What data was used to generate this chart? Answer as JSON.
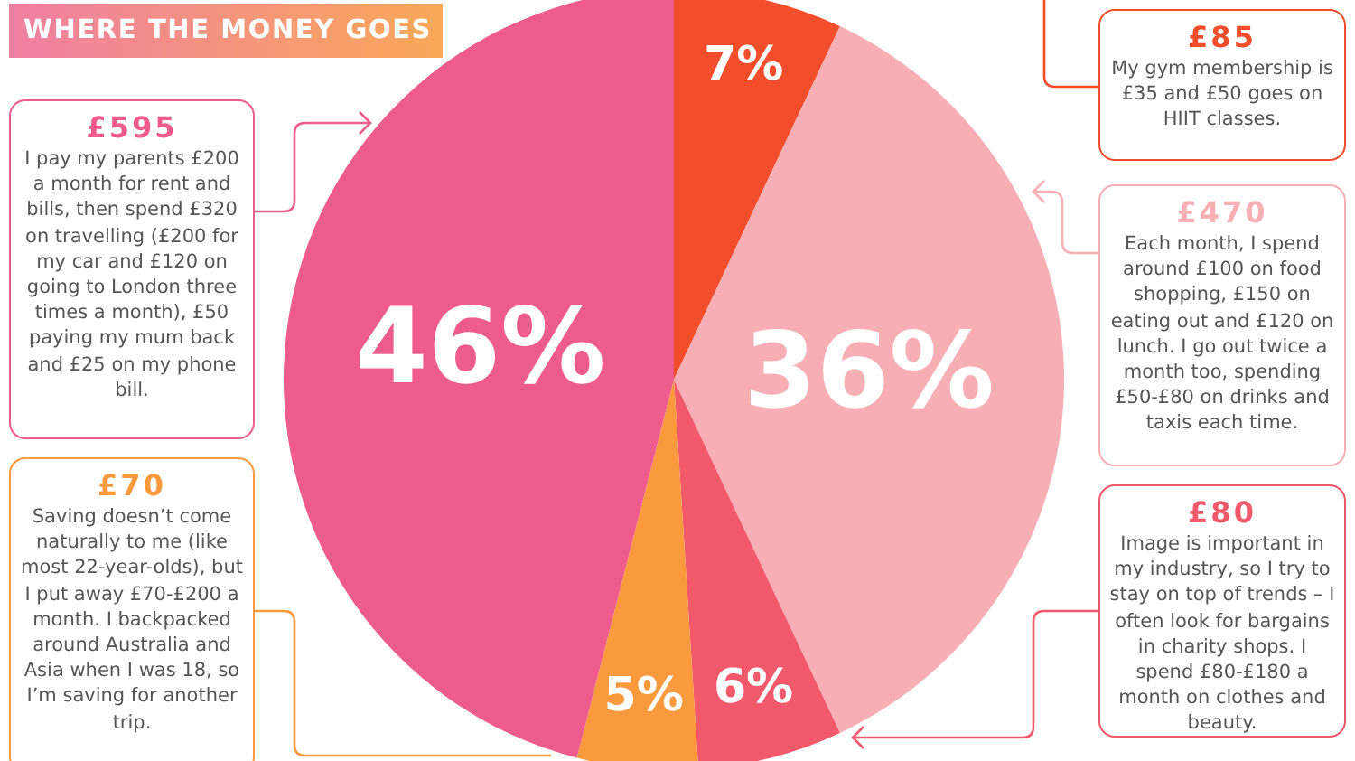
{
  "chart_data": {
    "type": "pie",
    "title": "WHERE THE MONEY GOES",
    "categories": [
      null,
      null,
      null,
      null,
      null
    ],
    "values": [
      7,
      36,
      6,
      5,
      46
    ],
    "colors": [
      "#f24e2b",
      "#f7aeb5",
      "#f25a6b",
      "#fb993d",
      "#ee5b8d"
    ],
    "value_labels": [
      "7%",
      "36%",
      "6%",
      "5%",
      "46%"
    ],
    "legend": false,
    "annotations": [
      "£595\nI pay my parents £200 a month for rent and bills, then spend £320 on travelling (£200 for my car and £120 on going to London three times a month), £50 paying my mum back and £25 on my phone bill.",
      "£70\nSaving doesn’t come naturally to me (like most 22-year-olds), but I put away £70-£200 a month. I backpacked around Australia and Asia when I was 18, so I’m saving for another trip.",
      "£85\nMy gym membership is £35 and £50 goes on HIIT classes.",
      "£470\nEach month, I spend around £100 on food shopping, £150 on eating out and £120 on lunch. I go out twice a month too, spending £50-£80 on drinks and taxis each time.",
      "£80\nImage is important in my industry, so I try to stay on top of trends – I often look for bargains in charity shops. I spend £80-£180 a month on clothes and beauty."
    ]
  }
}
